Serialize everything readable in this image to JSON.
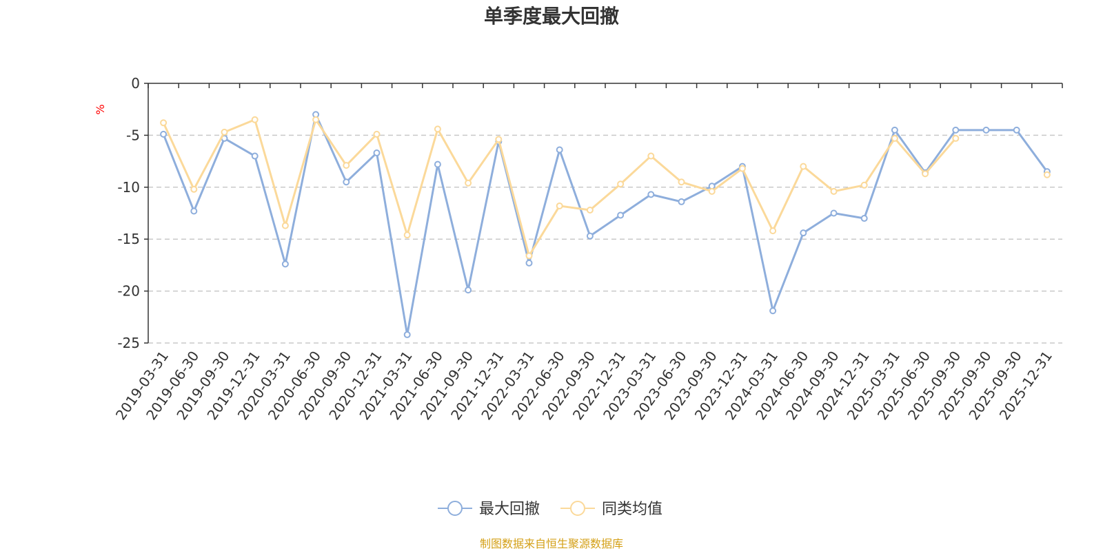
{
  "chart_data": {
    "type": "line",
    "title": "单季度最大回撤",
    "ylabel": "%",
    "xlabel": "",
    "ylim": [
      -25,
      0
    ],
    "yticks": [
      0,
      -5,
      -10,
      -15,
      -20,
      -25
    ],
    "grid": true,
    "legend_position": "bottom",
    "categories": [
      "2019-03-31",
      "2019-06-30",
      "2019-09-30",
      "2019-12-31",
      "2020-03-31",
      "2020-06-30",
      "2020-09-30",
      "2020-12-31",
      "2021-03-31",
      "2021-06-30",
      "2021-09-30",
      "2021-12-31",
      "2022-03-31",
      "2022-06-30",
      "2022-09-30",
      "2022-12-31",
      "2023-03-31",
      "2023-06-30",
      "2023-09-30",
      "2023-12-31",
      "2024-03-31",
      "2024-06-30",
      "2024-09-30",
      "2024-12-31",
      "2025-03-31",
      "2025-06-30",
      "2025-09-30",
      "2025-09-30",
      "2025-09-30",
      "2025-12-31"
    ],
    "series": [
      {
        "name": "最大回撤",
        "color": "#8eaedc",
        "values": [
          -4.9,
          -12.3,
          -5.3,
          -7.0,
          -17.4,
          -3.0,
          -9.5,
          -6.7,
          -24.2,
          -7.8,
          -19.9,
          -5.6,
          -17.3,
          -6.4,
          -14.7,
          -12.7,
          -10.7,
          -11.4,
          -9.9,
          -8.0,
          -21.9,
          -14.4,
          -12.5,
          -13.0,
          -4.5,
          -8.6,
          -4.5,
          -4.5,
          -4.5,
          -8.5
        ]
      },
      {
        "name": "同类均值",
        "color": "#fbd99a",
        "values": [
          -3.8,
          -10.2,
          -4.7,
          -3.5,
          -13.7,
          -3.5,
          -7.9,
          -4.9,
          -14.6,
          -4.4,
          -9.6,
          -5.4,
          -16.6,
          -11.8,
          -12.2,
          -9.7,
          -7.0,
          -9.5,
          -10.4,
          -8.2,
          -14.2,
          -8.0,
          -10.4,
          -9.8,
          -5.3,
          -8.7,
          -5.3,
          null,
          null,
          -8.8
        ]
      }
    ]
  },
  "source_text": "制图数据来自恒生聚源数据库"
}
